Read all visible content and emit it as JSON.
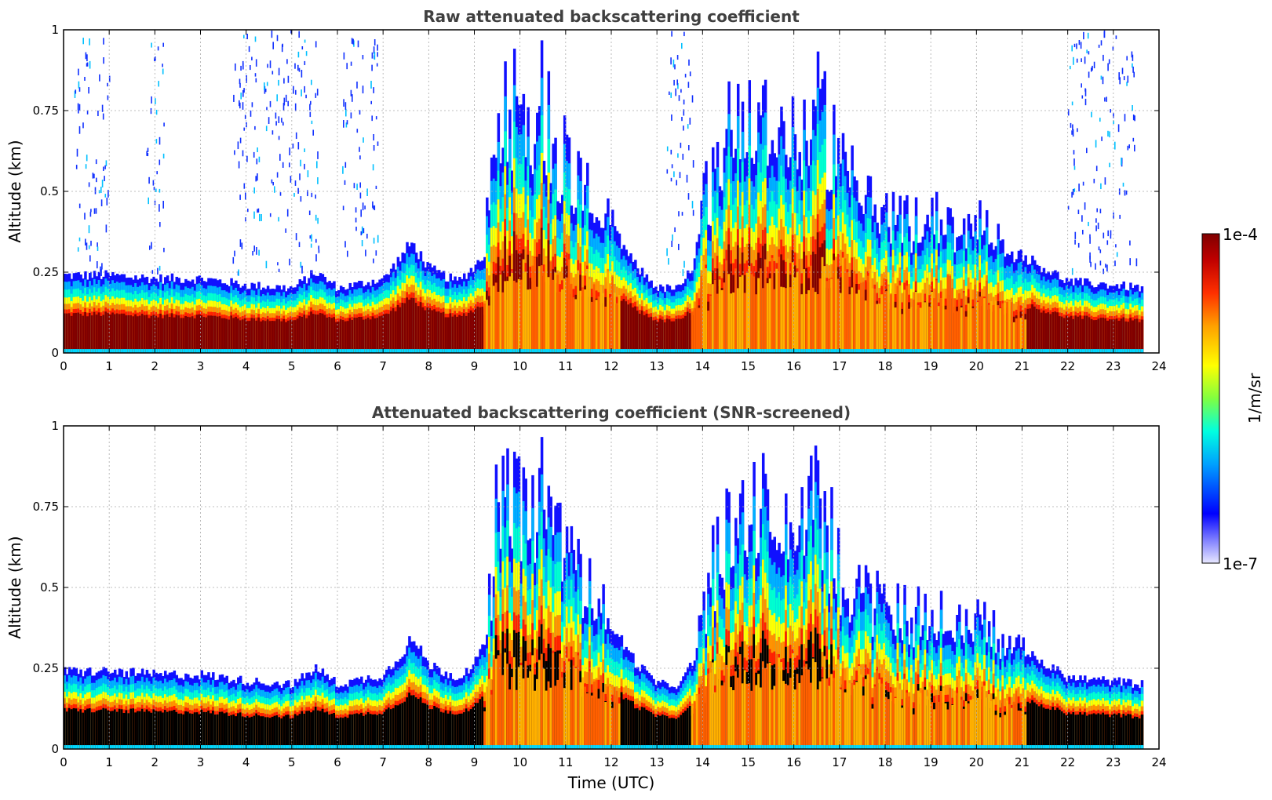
{
  "chart_data": [
    {
      "type": "heatmap",
      "title": "Raw attenuated backscattering coefficient",
      "xlabel": "",
      "ylabel": "Altitude (km)",
      "xlim": [
        0,
        24
      ],
      "ylim": [
        0,
        1
      ],
      "x_ticks": [
        "0",
        "1",
        "2",
        "3",
        "4",
        "5",
        "6",
        "7",
        "8",
        "9",
        "10",
        "11",
        "12",
        "13",
        "14",
        "15",
        "16",
        "17",
        "18",
        "19",
        "20",
        "21",
        "22",
        "23",
        "24"
      ],
      "y_ticks": [
        "0",
        "0.25",
        "0.5",
        "0.75",
        "1"
      ],
      "grid": true,
      "data_end_hour": 23.65,
      "noise_speckle": true,
      "dark_fill": "#800000",
      "profile": {
        "hours": [
          0,
          1,
          2,
          3,
          4,
          5,
          5.5,
          6,
          7,
          7.6,
          8,
          8.6,
          9,
          9.5,
          10,
          10.5,
          11,
          11.5,
          12,
          12.5,
          13,
          13.5,
          14,
          14.5,
          15,
          15.5,
          16,
          16.5,
          17,
          17.5,
          18,
          18.5,
          19,
          19.5,
          20,
          20.5,
          21,
          21.5,
          22,
          23,
          23.65
        ],
        "boundary_layer_top_km": [
          0.24,
          0.24,
          0.23,
          0.23,
          0.21,
          0.2,
          0.25,
          0.2,
          0.23,
          0.34,
          0.26,
          0.22,
          0.27,
          0.38,
          0.4,
          0.42,
          0.43,
          0.42,
          0.38,
          0.27,
          0.2,
          0.2,
          0.34,
          0.52,
          0.6,
          0.62,
          0.56,
          0.5,
          0.42,
          0.38,
          0.36,
          0.32,
          0.35,
          0.33,
          0.36,
          0.3,
          0.3,
          0.26,
          0.22,
          0.21,
          0.2
        ],
        "cloud_peak_km": [
          0,
          0,
          0,
          0,
          0,
          0,
          0,
          0,
          0,
          0,
          0,
          0,
          0,
          1.0,
          1.0,
          1.0,
          0.75,
          0.6,
          0.45,
          0,
          0,
          0,
          0.6,
          0.85,
          1.0,
          0.9,
          0.8,
          1.0,
          0.7,
          0.6,
          0.55,
          0.5,
          0.55,
          0.45,
          0.5,
          0.4,
          0.35,
          0,
          0,
          0,
          0
        ]
      }
    },
    {
      "type": "heatmap",
      "title": "Attenuated backscattering coefficient (SNR-screened)",
      "xlabel": "Time (UTC)",
      "ylabel": "Altitude (km)",
      "xlim": [
        0,
        24
      ],
      "ylim": [
        0,
        1
      ],
      "x_ticks": [
        "0",
        "1",
        "2",
        "3",
        "4",
        "5",
        "6",
        "7",
        "8",
        "9",
        "10",
        "11",
        "12",
        "13",
        "14",
        "15",
        "16",
        "17",
        "18",
        "19",
        "20",
        "21",
        "22",
        "23",
        "24"
      ],
      "y_ticks": [
        "0",
        "0.25",
        "0.5",
        "0.75",
        "1"
      ],
      "grid": true,
      "data_end_hour": 23.65,
      "noise_speckle": false,
      "dark_fill": "#000000"
    }
  ],
  "colorbar": {
    "label": "1/m/sr",
    "max_label": "1e-4",
    "min_label": "1e-7",
    "scale": "log",
    "vmin": 1e-07,
    "vmax": 0.0001,
    "stops": [
      "#e8e8ff",
      "#0000ff",
      "#00c0ff",
      "#00ffd0",
      "#80ff40",
      "#ffff00",
      "#ffa000",
      "#ff3000",
      "#c00000",
      "#800000"
    ]
  }
}
